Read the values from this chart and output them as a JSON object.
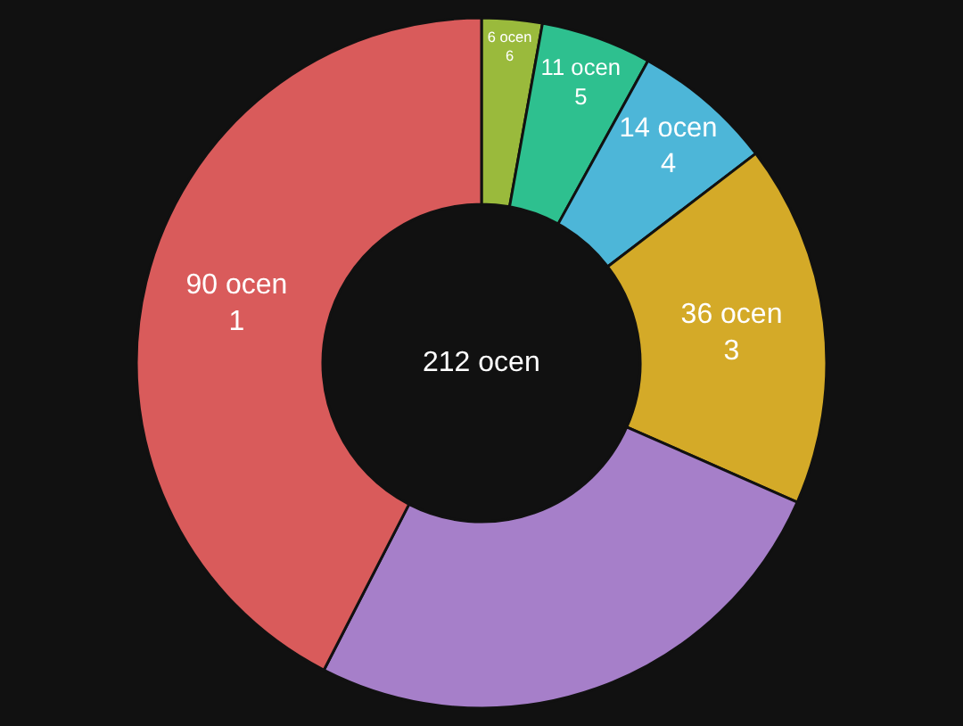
{
  "chart_data": {
    "type": "donut",
    "categories": [
      "6",
      "5",
      "4",
      "3",
      null,
      "1"
    ],
    "values": [
      6,
      11,
      14,
      36,
      55,
      90
    ],
    "colors": [
      "#9aba3c",
      "#2ec08f",
      "#4db6d8",
      "#d4aa28",
      "#a67fc9",
      "#d95b5b"
    ],
    "value_labels": [
      "6 ocen",
      "11 ocen",
      "14 ocen",
      "36 ocen",
      null,
      "90 ocen"
    ],
    "annotations": [
      "212 ocen"
    ],
    "legend": false
  }
}
